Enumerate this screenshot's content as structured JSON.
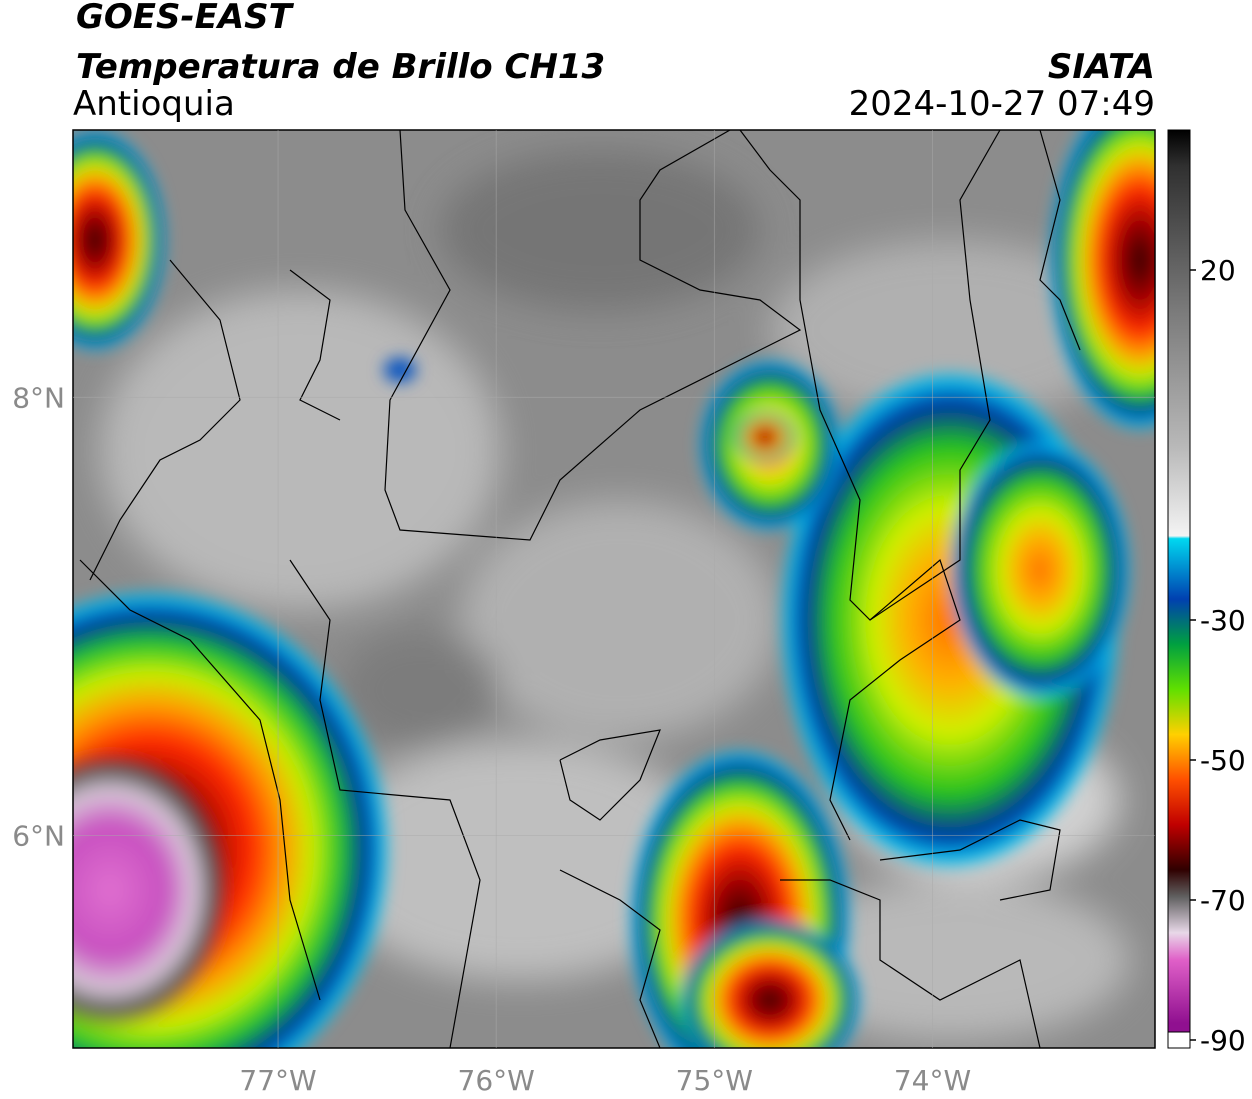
{
  "header": {
    "satellite": "GOES-EAST",
    "product": "Temperatura de Brillo CH13",
    "region": "Antioquia",
    "source": "SIATA",
    "datetime": "2024-10-27 07:49"
  },
  "map": {
    "xlim": [
      -77.94,
      -72.98
    ],
    "ylim": [
      5.03,
      9.22
    ],
    "xticks": [
      {
        "value": -77,
        "label": "77°W"
      },
      {
        "value": -76,
        "label": "76°W"
      },
      {
        "value": -75,
        "label": "75°W"
      },
      {
        "value": -74,
        "label": "74°W"
      }
    ],
    "yticks": [
      {
        "value": 8,
        "label": "8°N"
      },
      {
        "value": 6,
        "label": "6°N"
      }
    ],
    "grid": true
  },
  "colorbar": {
    "lim": [
      -90,
      40
    ],
    "ticks": [
      20,
      -30,
      -50,
      -70,
      -90
    ]
  }
}
